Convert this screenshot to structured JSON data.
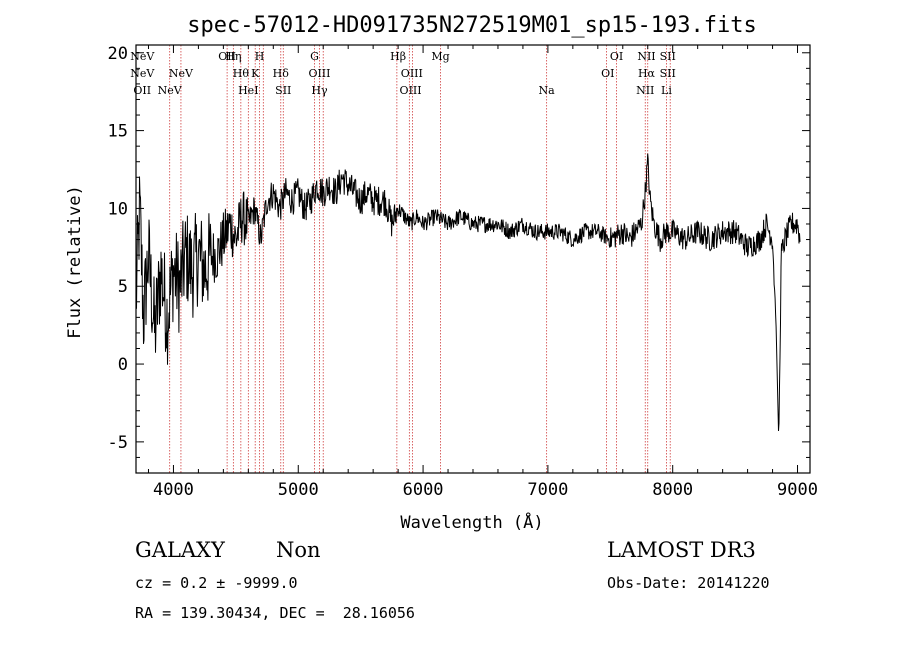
{
  "chart_data": {
    "type": "line",
    "title": "spec-57012-HD091735N272519M01_sp15-193.fits",
    "xlabel": "Wavelength (Å)",
    "ylabel": "Flux (relative)",
    "xlim": [
      3700,
      9100
    ],
    "ylim": [
      -7,
      20.5
    ],
    "xticks": [
      4000,
      5000,
      6000,
      7000,
      8000,
      9000
    ],
    "yticks": [
      -5,
      0,
      5,
      10,
      15,
      20
    ],
    "series": [
      {
        "name": "spectrum",
        "x": [
          3700,
          3730,
          3760,
          3800,
          3850,
          3900,
          3950,
          4000,
          4050,
          4100,
          4150,
          4200,
          4250,
          4300,
          4350,
          4400,
          4430,
          4450,
          4500,
          4550,
          4600,
          4650,
          4700,
          4750,
          4800,
          4850,
          4900,
          4950,
          5000,
          5050,
          5100,
          5150,
          5200,
          5250,
          5300,
          5350,
          5400,
          5450,
          5500,
          5550,
          5600,
          5650,
          5700,
          5750,
          5800,
          5850,
          5900,
          5950,
          6000,
          6100,
          6200,
          6300,
          6400,
          6500,
          6600,
          6700,
          6800,
          6900,
          7000,
          7100,
          7200,
          7300,
          7400,
          7500,
          7600,
          7650,
          7700,
          7750,
          7780,
          7800,
          7820,
          7850,
          7900,
          7950,
          8000,
          8100,
          8200,
          8300,
          8400,
          8500,
          8600,
          8700,
          8750,
          8800,
          8830,
          8850,
          8870,
          8900,
          8950,
          9000,
          9020
        ],
        "y": [
          4,
          10,
          3,
          7,
          2,
          6,
          3,
          6,
          5,
          7,
          6,
          7,
          6,
          7,
          7,
          8,
          8.5,
          9,
          8,
          9.5,
          9,
          10,
          8,
          10.5,
          11,
          10,
          11,
          10.5,
          11,
          10,
          10.5,
          11.5,
          11,
          11.5,
          11,
          12,
          11.5,
          11,
          10.5,
          11,
          10.5,
          10.5,
          10.5,
          9,
          10,
          9.5,
          9,
          9.5,
          9,
          9.5,
          9,
          9.5,
          9,
          9,
          9,
          8.5,
          9,
          8.5,
          8.5,
          8.5,
          8,
          8.5,
          8.5,
          8,
          8.5,
          8,
          8.5,
          9,
          11,
          13,
          10.5,
          9,
          8,
          8.5,
          8.5,
          8,
          8.5,
          8,
          8.5,
          8.5,
          7.5,
          8,
          9,
          8,
          2,
          -5,
          7,
          8,
          9,
          9,
          8
        ]
      }
    ],
    "spectral_lines": [
      {
        "name": "NeV",
        "wavelength": 3346,
        "row": 0
      },
      {
        "name": "NeV",
        "wavelength": 3426,
        "row": 1
      },
      {
        "name": "OII",
        "wavelength": 3727,
        "row": 2
      },
      {
        "name": "NeV",
        "wavelength": 3970,
        "row": 2
      },
      {
        "name": "NeV",
        "wavelength": 4060,
        "row": 1
      },
      {
        "name": "OII",
        "wavelength": 4430,
        "row": 0
      },
      {
        "name": "Hη",
        "wavelength": 4480,
        "row": 0
      },
      {
        "name": "Hθ",
        "wavelength": 4540,
        "row": 1
      },
      {
        "name": "HeI",
        "wavelength": 4600,
        "row": 2
      },
      {
        "name": "H",
        "wavelength": 4690,
        "row": 0
      },
      {
        "name": "K",
        "wavelength": 4655,
        "row": 1
      },
      {
        "name": "Hδ",
        "wavelength": 4860,
        "row": 1
      },
      {
        "name": "SII",
        "wavelength": 4880,
        "row": 2
      },
      {
        "name": "G",
        "wavelength": 5130,
        "row": 0
      },
      {
        "name": "OIII",
        "wavelength": 5170,
        "row": 1
      },
      {
        "name": "Hγ",
        "wavelength": 5170,
        "row": 2
      },
      {
        "name": "Hβ",
        "wavelength": 5800,
        "row": 0
      },
      {
        "name": "OIII",
        "wavelength": 5910,
        "row": 1
      },
      {
        "name": "OIII",
        "wavelength": 5900,
        "row": 2
      },
      {
        "name": "Mg",
        "wavelength": 6140,
        "row": 0
      },
      {
        "name": "Na",
        "wavelength": 6990,
        "row": 2
      },
      {
        "name": "OI",
        "wavelength": 7550,
        "row": 0
      },
      {
        "name": "OI",
        "wavelength": 7480,
        "row": 1
      },
      {
        "name": "NII",
        "wavelength": 7790,
        "row": 0
      },
      {
        "name": "Hα",
        "wavelength": 7790,
        "row": 1
      },
      {
        "name": "NII",
        "wavelength": 7780,
        "row": 2
      },
      {
        "name": "SII",
        "wavelength": 7960,
        "row": 0
      },
      {
        "name": "SII",
        "wavelength": 7960,
        "row": 1
      },
      {
        "name": "Li",
        "wavelength": 7950,
        "row": 2
      }
    ],
    "marker_lines": [
      3970,
      4060,
      4430,
      4480,
      4540,
      4600,
      4655,
      4690,
      4720,
      4860,
      4880,
      5130,
      5170,
      5200,
      5790,
      5890,
      5915,
      6140,
      6990,
      7470,
      7550,
      7780,
      7800,
      7950,
      7980
    ]
  },
  "footer": {
    "object_class": "GALAXY",
    "subclass": "Non",
    "survey": "LAMOST DR3",
    "cz": "cz = 0.2 ± -9999.0",
    "obs_date": "Obs-Date: 20141220",
    "coords": "RA = 139.30434, DEC =  28.16056"
  }
}
